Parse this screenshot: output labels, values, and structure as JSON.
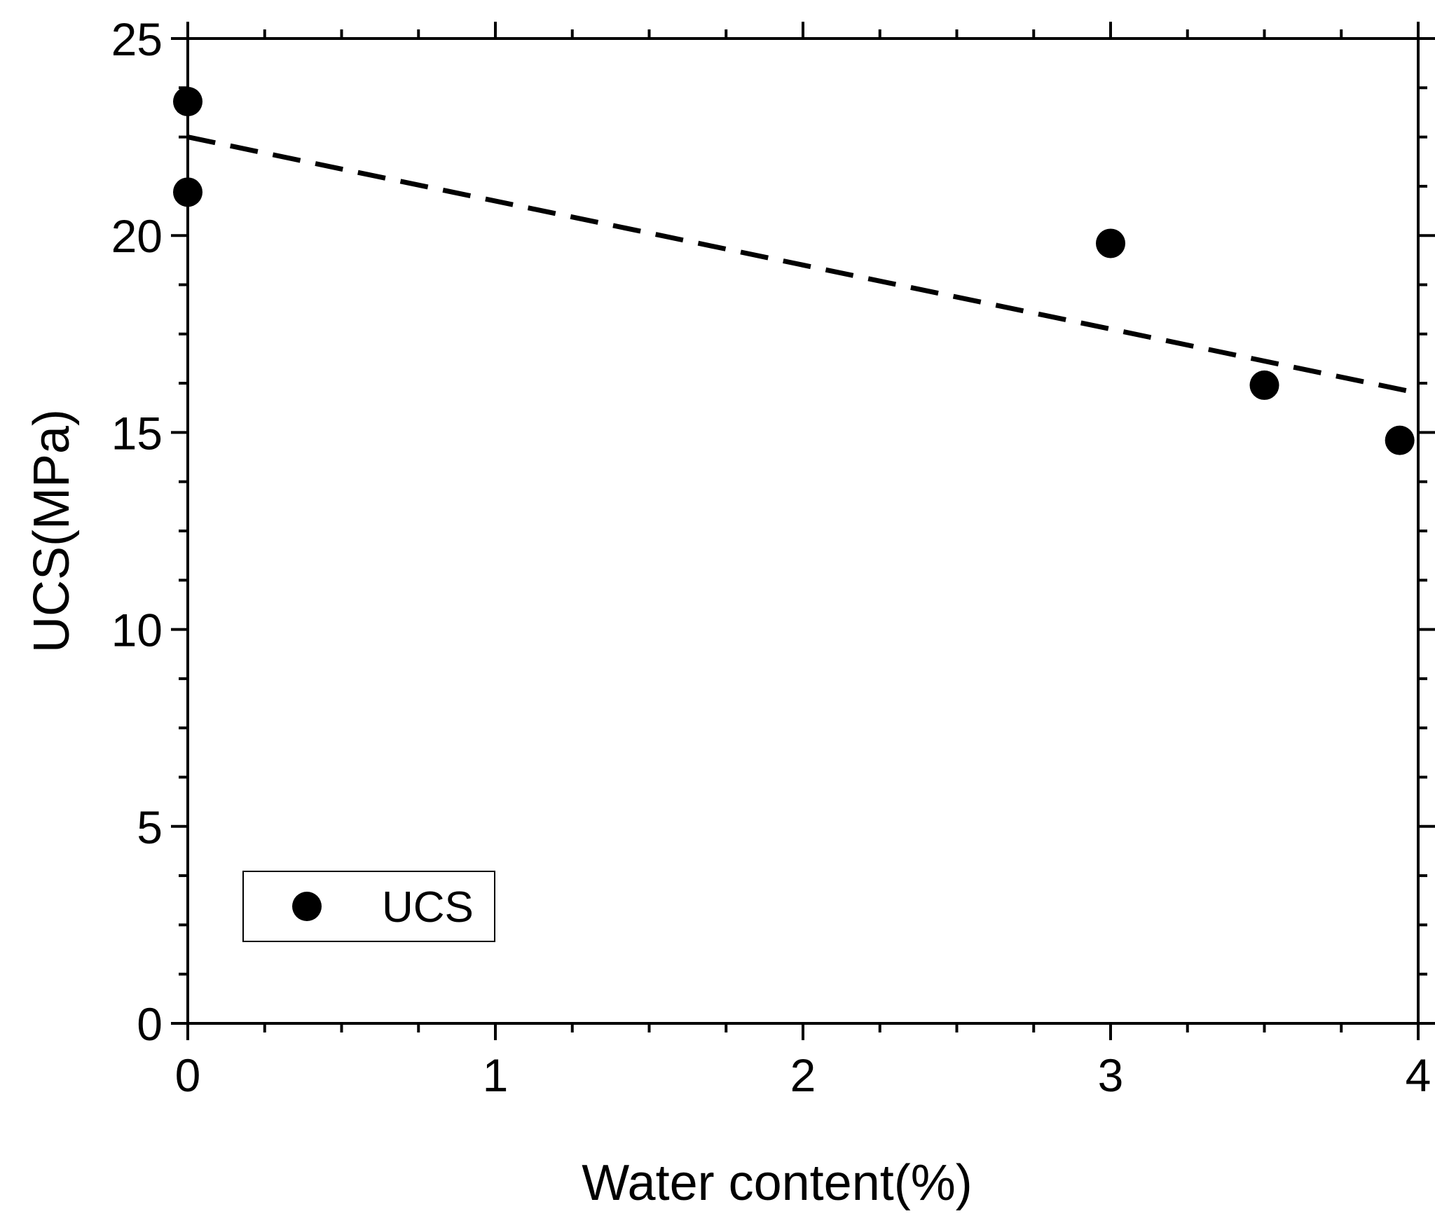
{
  "chart_data": {
    "type": "scatter",
    "xlabel": "Water content(%)",
    "ylabel": "UCS(MPa)",
    "xlim": [
      0,
      4
    ],
    "ylim": [
      0,
      25
    ],
    "x_ticks": [
      "0",
      "1",
      "2",
      "3",
      "4"
    ],
    "y_ticks": [
      "0",
      "5",
      "10",
      "15",
      "20",
      "25"
    ],
    "grid": false,
    "legend": {
      "placement": "bottom-left",
      "entries": [
        "UCS"
      ]
    },
    "series": [
      {
        "name": "UCS",
        "marker": "filled-circle",
        "color": "#000000",
        "points": [
          {
            "x": 0.0,
            "y": 23.4
          },
          {
            "x": 0.0,
            "y": 21.1
          },
          {
            "x": 3.0,
            "y": 19.8
          },
          {
            "x": 3.5,
            "y": 16.2
          },
          {
            "x": 3.94,
            "y": 14.8
          }
        ]
      }
    ],
    "fit_line": {
      "style": "dashed",
      "color": "#000000",
      "points": [
        {
          "x": 0.0,
          "y": 22.5
        },
        {
          "x": 4.0,
          "y": 16.0
        }
      ]
    }
  }
}
